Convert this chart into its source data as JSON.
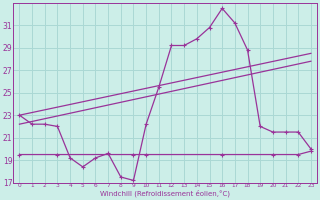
{
  "xlabel": "Windchill (Refroidissement éolien,°C)",
  "bg_color": "#cceee8",
  "grid_color": "#aad8d4",
  "line_color": "#993399",
  "xlim": [
    -0.5,
    23.5
  ],
  "ylim": [
    17,
    33
  ],
  "yticks": [
    17,
    19,
    21,
    23,
    25,
    27,
    29,
    31
  ],
  "xticks": [
    0,
    1,
    2,
    3,
    4,
    5,
    6,
    7,
    8,
    9,
    10,
    11,
    12,
    13,
    14,
    15,
    16,
    17,
    18,
    19,
    20,
    21,
    22,
    23
  ],
  "series1_x": [
    0,
    1,
    2,
    3,
    4,
    5,
    6,
    7,
    8,
    9,
    10,
    11,
    12,
    13,
    14,
    15,
    16,
    17,
    18,
    19,
    20,
    21,
    22,
    23
  ],
  "series1_y": [
    23,
    22.2,
    22.2,
    22.0,
    19.2,
    18.4,
    19.2,
    19.6,
    17.5,
    17.2,
    22.2,
    25.5,
    29.2,
    29.2,
    29.8,
    30.8,
    32.5,
    31.2,
    28.8,
    22.0,
    21.5,
    21.5,
    21.5,
    20.0
  ],
  "series2_x": [
    0,
    23
  ],
  "series2_y": [
    23.0,
    28.5
  ],
  "series3_x": [
    0,
    23
  ],
  "series3_y": [
    22.2,
    27.8
  ],
  "series4_x": [
    0,
    3,
    9,
    10,
    16,
    20,
    22,
    23
  ],
  "series4_y": [
    19.5,
    19.5,
    19.5,
    19.5,
    19.5,
    19.5,
    19.5,
    19.8
  ]
}
